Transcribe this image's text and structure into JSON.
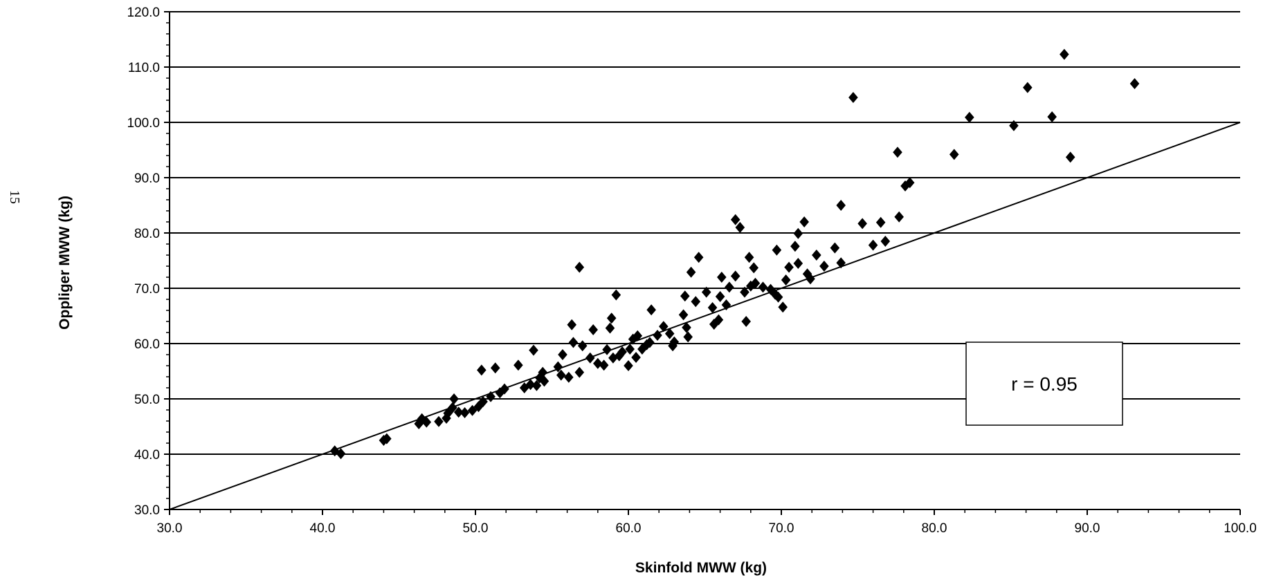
{
  "page_number": "15",
  "chart_data": {
    "type": "scatter",
    "xlabel": "Skinfold MWW (kg)",
    "ylabel": "Oppliger MWW (kg)",
    "xlim": [
      30,
      100
    ],
    "ylim": [
      30,
      120
    ],
    "x_ticks": [
      "30.0",
      "40.0",
      "50.0",
      "60.0",
      "70.0",
      "80.0",
      "90.0",
      "100.0"
    ],
    "y_ticks": [
      "30.0",
      "40.0",
      "50.0",
      "60.0",
      "70.0",
      "80.0",
      "90.0",
      "100.0",
      "110.0",
      "120.0"
    ],
    "gridlines": "horizontal",
    "annotation": "r = 0.95",
    "marker": "diamond",
    "marker_color": "#000000",
    "line": {
      "type": "identity",
      "points": [
        [
          30,
          30
        ],
        [
          100,
          100
        ]
      ]
    },
    "points": [
      [
        40.8,
        40.6
      ],
      [
        41.2,
        40.1
      ],
      [
        44.0,
        42.5
      ],
      [
        44.2,
        42.8
      ],
      [
        46.3,
        45.5
      ],
      [
        46.5,
        46.4
      ],
      [
        46.8,
        45.8
      ],
      [
        47.6,
        45.9
      ],
      [
        48.1,
        46.5
      ],
      [
        48.2,
        47.4
      ],
      [
        48.5,
        48.4
      ],
      [
        48.6,
        50.0
      ],
      [
        48.9,
        47.6
      ],
      [
        49.3,
        47.5
      ],
      [
        49.8,
        47.9
      ],
      [
        50.2,
        48.6
      ],
      [
        50.5,
        49.5
      ],
      [
        50.4,
        55.2
      ],
      [
        51.0,
        50.4
      ],
      [
        51.3,
        55.6
      ],
      [
        51.6,
        51.1
      ],
      [
        51.9,
        51.8
      ],
      [
        52.8,
        56.1
      ],
      [
        53.2,
        52.0
      ],
      [
        53.6,
        52.6
      ],
      [
        53.8,
        58.8
      ],
      [
        54.0,
        52.4
      ],
      [
        54.2,
        53.8
      ],
      [
        54.5,
        53.2
      ],
      [
        54.4,
        54.8
      ],
      [
        55.4,
        55.8
      ],
      [
        55.6,
        54.3
      ],
      [
        55.7,
        58.0
      ],
      [
        56.1,
        53.9
      ],
      [
        56.3,
        63.4
      ],
      [
        56.4,
        60.2
      ],
      [
        56.8,
        54.8
      ],
      [
        56.8,
        73.8
      ],
      [
        57.0,
        59.6
      ],
      [
        57.5,
        57.4
      ],
      [
        57.7,
        62.5
      ],
      [
        58.0,
        56.4
      ],
      [
        58.4,
        56.1
      ],
      [
        58.6,
        58.9
      ],
      [
        58.8,
        62.8
      ],
      [
        58.9,
        64.6
      ],
      [
        59.0,
        57.4
      ],
      [
        59.2,
        68.8
      ],
      [
        59.4,
        57.8
      ],
      [
        59.6,
        58.5
      ],
      [
        60.0,
        56.0
      ],
      [
        60.1,
        59.0
      ],
      [
        60.3,
        60.8
      ],
      [
        60.5,
        57.5
      ],
      [
        60.6,
        61.4
      ],
      [
        60.9,
        59.0
      ],
      [
        61.2,
        59.8
      ],
      [
        61.4,
        60.2
      ],
      [
        61.5,
        66.1
      ],
      [
        61.9,
        61.5
      ],
      [
        62.3,
        63.1
      ],
      [
        62.7,
        61.8
      ],
      [
        62.9,
        59.6
      ],
      [
        63.0,
        60.3
      ],
      [
        63.6,
        65.2
      ],
      [
        63.7,
        68.6
      ],
      [
        63.8,
        62.9
      ],
      [
        63.9,
        61.2
      ],
      [
        64.1,
        72.9
      ],
      [
        64.4,
        67.6
      ],
      [
        64.6,
        75.6
      ],
      [
        65.1,
        69.3
      ],
      [
        65.5,
        66.5
      ],
      [
        65.6,
        63.5
      ],
      [
        65.9,
        64.3
      ],
      [
        66.0,
        68.5
      ],
      [
        66.1,
        72.0
      ],
      [
        66.4,
        67.0
      ],
      [
        66.6,
        70.2
      ],
      [
        67.0,
        72.2
      ],
      [
        67.0,
        82.4
      ],
      [
        67.3,
        81.0
      ],
      [
        67.6,
        69.3
      ],
      [
        67.7,
        64.0
      ],
      [
        67.9,
        75.6
      ],
      [
        68.0,
        70.4
      ],
      [
        68.2,
        73.7
      ],
      [
        68.3,
        70.9
      ],
      [
        68.8,
        70.2
      ],
      [
        69.3,
        69.8
      ],
      [
        69.6,
        68.9
      ],
      [
        69.7,
        76.9
      ],
      [
        69.8,
        68.4
      ],
      [
        70.1,
        66.6
      ],
      [
        70.3,
        71.5
      ],
      [
        70.5,
        73.8
      ],
      [
        70.9,
        77.6
      ],
      [
        71.1,
        74.5
      ],
      [
        71.1,
        79.9
      ],
      [
        71.5,
        82.0
      ],
      [
        71.7,
        72.6
      ],
      [
        71.9,
        71.7
      ],
      [
        72.3,
        76.0
      ],
      [
        72.8,
        74.0
      ],
      [
        73.5,
        77.3
      ],
      [
        73.9,
        74.6
      ],
      [
        73.9,
        85.0
      ],
      [
        74.7,
        104.5
      ],
      [
        75.3,
        81.7
      ],
      [
        76.0,
        77.8
      ],
      [
        76.5,
        81.9
      ],
      [
        76.8,
        78.5
      ],
      [
        77.6,
        94.6
      ],
      [
        77.7,
        82.9
      ],
      [
        78.1,
        88.5
      ],
      [
        78.4,
        89.1
      ],
      [
        81.3,
        94.2
      ],
      [
        82.3,
        100.9
      ],
      [
        85.2,
        99.4
      ],
      [
        86.1,
        106.3
      ],
      [
        87.7,
        101.0
      ],
      [
        88.5,
        112.3
      ],
      [
        88.9,
        93.7
      ],
      [
        93.1,
        107.0
      ]
    ]
  }
}
